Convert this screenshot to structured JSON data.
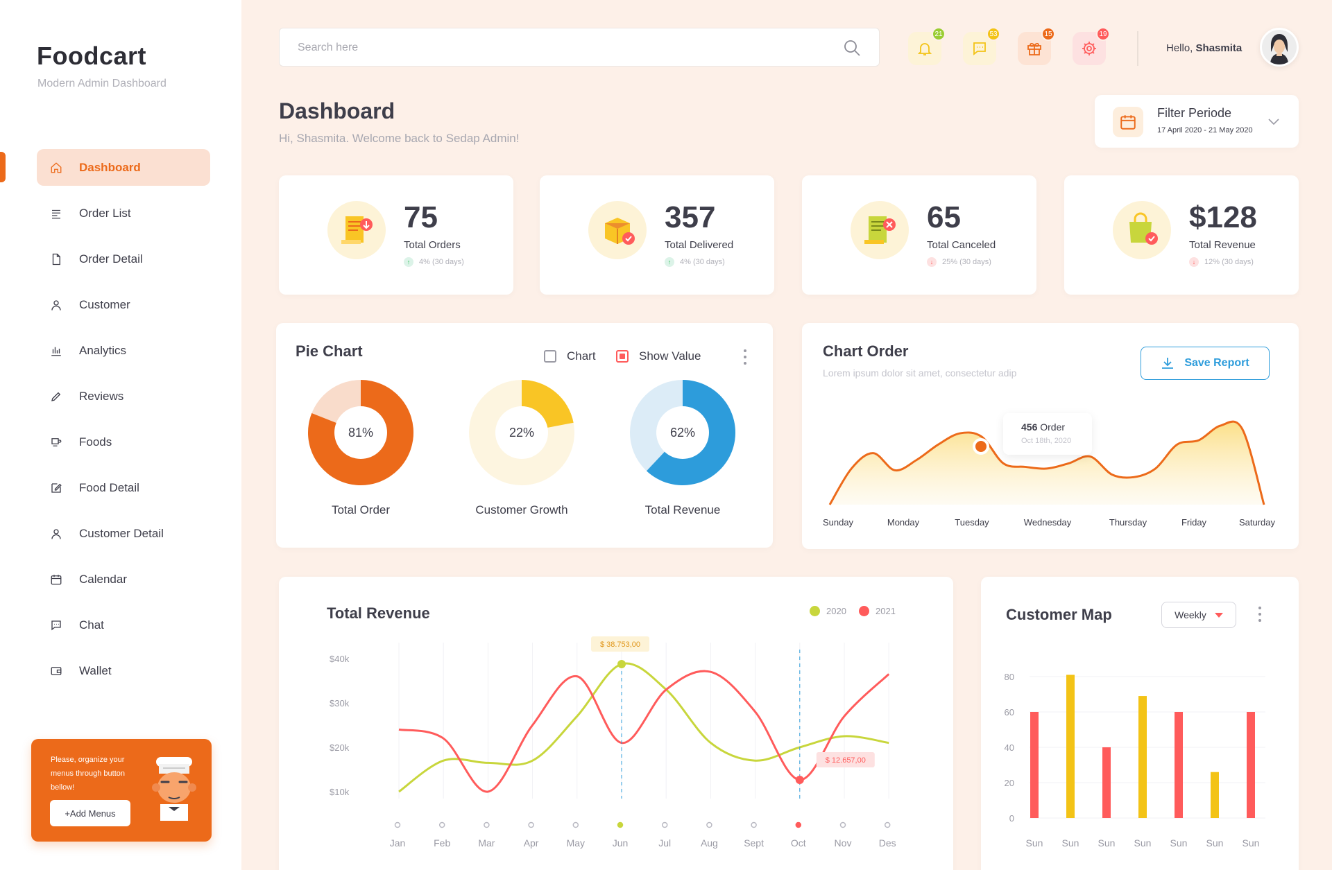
{
  "sidebar": {
    "logo": "Foodcart",
    "logo_sub": "Modern Admin Dashboard",
    "items": [
      {
        "label": "Dashboard",
        "icon": "home-icon",
        "active": true
      },
      {
        "label": "Order List",
        "icon": "list-icon"
      },
      {
        "label": "Order Detail",
        "icon": "document-icon"
      },
      {
        "label": "Customer",
        "icon": "user-icon"
      },
      {
        "label": "Analytics",
        "icon": "bar-chart-icon"
      },
      {
        "label": "Reviews",
        "icon": "pencil-icon"
      },
      {
        "label": "Foods",
        "icon": "food-icon"
      },
      {
        "label": "Food Detail",
        "icon": "edit-icon"
      },
      {
        "label": "Customer Detail",
        "icon": "user-icon"
      },
      {
        "label": "Calendar",
        "icon": "calendar-icon"
      },
      {
        "label": "Chat",
        "icon": "chat-icon"
      },
      {
        "label": "Wallet",
        "icon": "wallet-icon"
      }
    ],
    "promo": {
      "text": "Please, organize your menus through button bellow!",
      "button": "+Add Menus"
    }
  },
  "header": {
    "search_placeholder": "Search here",
    "icons": [
      {
        "name": "bell-icon",
        "badge": "21",
        "bg": "#fdf3d7",
        "color": "#f3c316",
        "badge_color": "#9acd32"
      },
      {
        "name": "chat-icon",
        "badge": "53",
        "bg": "#fdf3d7",
        "color": "#f3c316",
        "badge_color": "#f3c316"
      },
      {
        "name": "gift-icon",
        "badge": "15",
        "bg": "#fde3d4",
        "color": "#ec6a1a",
        "badge_color": "#ec6a1a"
      },
      {
        "name": "gear-icon",
        "badge": "19",
        "bg": "#fde1e1",
        "color": "#ff5b5b",
        "badge_color": "#ff5b5b"
      }
    ],
    "hello": "Hello,",
    "user": "Shasmita"
  },
  "page": {
    "title": "Dashboard",
    "subtitle": "Hi, Shasmita. Welcome back  to Sedap Admin!"
  },
  "filter": {
    "title": "Filter Periode",
    "range": "17 April 2020 - 21 May 2020"
  },
  "stats": [
    {
      "value": "75",
      "label": "Total Orders",
      "change": "4% (30 days)",
      "trend": "up",
      "icon": "receipt-download-icon"
    },
    {
      "value": "357",
      "label": "Total Delivered",
      "change": "4% (30 days)",
      "trend": "up",
      "icon": "package-check-icon"
    },
    {
      "value": "65",
      "label": "Total Canceled",
      "change": "25% (30 days)",
      "trend": "down",
      "icon": "receipt-cancel-icon"
    },
    {
      "value": "$128",
      "label": "Total Revenue",
      "change": "12% (30 days)",
      "trend": "down",
      "icon": "shopping-bag-icon"
    }
  ],
  "pie_card": {
    "title": "Pie Chart",
    "chart_label": "Chart",
    "show_value_label": "Show Value",
    "chart_checked": false,
    "show_value_checked": true
  },
  "order_card": {
    "title": "Chart Order",
    "subtitle": "Lorem ipsum dolor sit amet, consectetur adip",
    "save_label": "Save Report",
    "tooltip_value": "456",
    "tooltip_unit": "Order",
    "tooltip_date": "Oct 18th, 2020"
  },
  "revenue_card": {
    "title": "Total Revenue",
    "legend_2020": "2020",
    "legend_2021": "2021",
    "label_peak": "$ 38.753,00",
    "label_low": "$ 12.657,00"
  },
  "map_card": {
    "title": "Customer Map",
    "period": "Weekly"
  },
  "chart_data": [
    {
      "type": "pie",
      "title": "Pie Chart",
      "slices": [
        {
          "label": "Total Order",
          "value": 81,
          "display": "81%",
          "color": "#ec6a1a",
          "rest_color": "#f9dccb"
        },
        {
          "label": "Customer Growth",
          "value": 22,
          "display": "22%",
          "color": "#f9c525",
          "rest_color": "#fdf5e0"
        },
        {
          "label": "Total Revenue",
          "value": 62,
          "display": "62%",
          "color": "#2d9cdb",
          "rest_color": "#dcecf7"
        }
      ]
    },
    {
      "type": "area",
      "title": "Chart Order",
      "categories": [
        "Sunday",
        "Monday",
        "Tuesday",
        "Wednesday",
        "Thursday",
        "Friday",
        "Saturday"
      ],
      "x": [
        0,
        0.5,
        1,
        1.5,
        2,
        2.5,
        3,
        3.5,
        4,
        4.5,
        5,
        5.5,
        6,
        6.5,
        7,
        7.5,
        8,
        8.5,
        9,
        9.5,
        10
      ],
      "values": [
        0,
        42,
        60,
        40,
        52,
        70,
        83,
        79,
        48,
        44,
        42,
        48,
        56,
        35,
        32,
        42,
        70,
        75,
        92,
        88,
        0
      ],
      "highlight": {
        "value": 456,
        "date": "Oct 18th, 2020"
      }
    },
    {
      "type": "line",
      "title": "Total Revenue",
      "categories": [
        "Jan",
        "Feb",
        "Mar",
        "Apr",
        "May",
        "Jun",
        "Jul",
        "Aug",
        "Sept",
        "Oct",
        "Nov",
        "Des"
      ],
      "y_ticks": [
        "$40k",
        "$30k",
        "$20k",
        "$10k"
      ],
      "ylim": [
        10000,
        40000
      ],
      "series": [
        {
          "name": "2020",
          "color": "#c8d63c",
          "values": [
            10000,
            17000,
            16500,
            17000,
            27000,
            38753,
            33000,
            21000,
            17000,
            20000,
            22500,
            21000
          ]
        },
        {
          "name": "2021",
          "color": "#ff5b5b",
          "values": [
            24000,
            22000,
            10000,
            25000,
            36000,
            21000,
            33000,
            37000,
            28000,
            12657,
            27000,
            36500
          ]
        }
      ],
      "highlighted_month": {
        "2020": "Jun",
        "2021": "Oct"
      }
    },
    {
      "type": "bar",
      "title": "Customer Map",
      "categories": [
        "Sun",
        "Sun",
        "Sun",
        "Sun",
        "Sun",
        "Sun",
        "Sun"
      ],
      "y_ticks": [
        0,
        20,
        40,
        60,
        80
      ],
      "ylim": [
        0,
        85
      ],
      "values": [
        60,
        81,
        40,
        69,
        60,
        26,
        60
      ],
      "colors": [
        "#ff5b5b",
        "#f3c316",
        "#ff5b5b",
        "#f3c316",
        "#ff5b5b",
        "#f3c316",
        "#ff5b5b"
      ]
    }
  ]
}
